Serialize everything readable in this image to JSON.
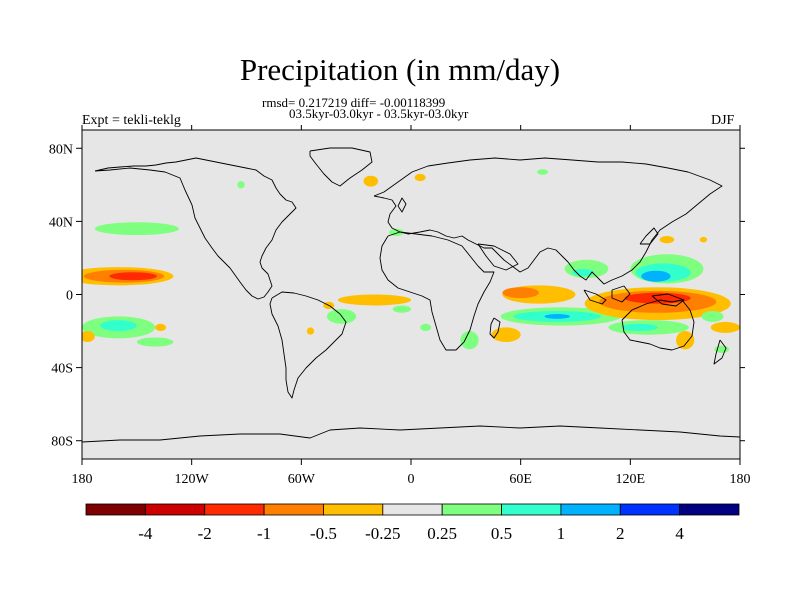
{
  "title": "Precipitation (in mm/day)",
  "stats_line": "rmsd= 0.217219 diff= -0.00118399",
  "period_line": "03.5kyr-03.0kyr - 03.5kyr-03.0kyr",
  "experiment_label": "Expt = tekli-teklg",
  "season_label": "DJF",
  "map": {
    "projection": "cylindrical-equidistant",
    "lon_range": [
      -180,
      180
    ],
    "lat_range": [
      -90,
      90
    ],
    "land_fill": "#e6e6e6",
    "frame_color": "#000000"
  },
  "axes": {
    "x_ticks": [
      {
        "lon": -180,
        "label": "180"
      },
      {
        "lon": -120,
        "label": "120W"
      },
      {
        "lon": -60,
        "label": "60W"
      },
      {
        "lon": 0,
        "label": "0"
      },
      {
        "lon": 60,
        "label": "60E"
      },
      {
        "lon": 120,
        "label": "120E"
      },
      {
        "lon": 180,
        "label": "180"
      }
    ],
    "y_ticks": [
      {
        "lat": 80,
        "label": "80N"
      },
      {
        "lat": 40,
        "label": "40N"
      },
      {
        "lat": 0,
        "label": "0"
      },
      {
        "lat": -40,
        "label": "40S"
      },
      {
        "lat": -80,
        "label": "80S"
      }
    ]
  },
  "colorbar": {
    "colors": [
      "#7f0000",
      "#cc0000",
      "#ff2a00",
      "#ff7f00",
      "#ffbf00",
      "#e6e6e6",
      "#7fff7f",
      "#33ffcc",
      "#00b2ff",
      "#0033ff",
      "#000080"
    ],
    "labels": [
      "-4",
      "-2",
      "-1",
      "-0.5",
      "-0.25",
      "0.25",
      "0.5",
      "1",
      "2",
      "4"
    ]
  },
  "anomalies": [
    {
      "name": "n-pacific-dry-outer",
      "color": "#ffbf00",
      "lon": -160,
      "lat": 10,
      "rx": 30,
      "ry": 5
    },
    {
      "name": "n-pacific-dry-mid",
      "color": "#ff7f00",
      "lon": -157,
      "lat": 10,
      "rx": 22,
      "ry": 3.5
    },
    {
      "name": "n-pacific-dry-core",
      "color": "#ff2a00",
      "lon": -152,
      "lat": 10,
      "rx": 13,
      "ry": 2.2
    },
    {
      "name": "n-pacific-wet",
      "color": "#7fff7f",
      "lon": -150,
      "lat": 36,
      "rx": 23,
      "ry": 3.5
    },
    {
      "name": "s-pacific-wet-outer",
      "color": "#7fff7f",
      "lon": -160,
      "lat": -18,
      "rx": 20,
      "ry": 6
    },
    {
      "name": "s-pacific-wet-core",
      "color": "#33ffcc",
      "lon": -160,
      "lat": -17,
      "rx": 10,
      "ry": 3
    },
    {
      "name": "s-pacific-wet-tail",
      "color": "#7fff7f",
      "lon": -140,
      "lat": -26,
      "rx": 10,
      "ry": 2.5
    },
    {
      "name": "s-pacific-dry-west",
      "color": "#ffbf00",
      "lon": -177,
      "lat": -23,
      "rx": 4,
      "ry": 3
    },
    {
      "name": "s-pacific-dry-east",
      "color": "#ffbf00",
      "lon": -137,
      "lat": -18,
      "rx": 3,
      "ry": 2
    },
    {
      "name": "canada-wet",
      "color": "#7fff7f",
      "lon": -93,
      "lat": 60,
      "rx": 2,
      "ry": 2
    },
    {
      "name": "n-atlantic-wet",
      "color": "#7fff7f",
      "lon": -8,
      "lat": 34,
      "rx": 4,
      "ry": 2
    },
    {
      "name": "greenland-dry",
      "color": "#ffbf00",
      "lon": -22,
      "lat": 62,
      "rx": 4,
      "ry": 3
    },
    {
      "name": "nordic-dry",
      "color": "#ffbf00",
      "lon": 5,
      "lat": 64,
      "rx": 3,
      "ry": 2
    },
    {
      "name": "russia-wet",
      "color": "#7fff7f",
      "lon": 72,
      "lat": 67,
      "rx": 3,
      "ry": 1.5
    },
    {
      "name": "amazon-dry-band",
      "color": "#ffbf00",
      "lon": -20,
      "lat": -3,
      "rx": 20,
      "ry": 3
    },
    {
      "name": "brazil-wet",
      "color": "#7fff7f",
      "lon": -38,
      "lat": -12,
      "rx": 8,
      "ry": 4
    },
    {
      "name": "brazil-dry",
      "color": "#ffbf00",
      "lon": -45,
      "lat": -6,
      "rx": 3,
      "ry": 2
    },
    {
      "name": "s-atlantic-dry",
      "color": "#ffbf00",
      "lon": -55,
      "lat": -20,
      "rx": 2,
      "ry": 2
    },
    {
      "name": "guinea-wet",
      "color": "#7fff7f",
      "lon": -5,
      "lat": -8,
      "rx": 5,
      "ry": 2
    },
    {
      "name": "s-atlantic-wet",
      "color": "#7fff7f",
      "lon": 8,
      "lat": -18,
      "rx": 3,
      "ry": 2
    },
    {
      "name": "s-africa-wet",
      "color": "#7fff7f",
      "lon": 32,
      "lat": -25,
      "rx": 5,
      "ry": 5
    },
    {
      "name": "madagascar-dry",
      "color": "#ffbf00",
      "lon": 52,
      "lat": -22,
      "rx": 8,
      "ry": 4
    },
    {
      "name": "w-indian-dry-outer",
      "color": "#ffbf00",
      "lon": 70,
      "lat": 0,
      "rx": 20,
      "ry": 5
    },
    {
      "name": "w-indian-dry-core",
      "color": "#ff7f00",
      "lon": 60,
      "lat": 1,
      "rx": 10,
      "ry": 3
    },
    {
      "name": "indian-wet-outer",
      "color": "#7fff7f",
      "lon": 82,
      "lat": -12,
      "rx": 33,
      "ry": 5
    },
    {
      "name": "indian-wet-mid",
      "color": "#33ffcc",
      "lon": 80,
      "lat": -12,
      "rx": 24,
      "ry": 3
    },
    {
      "name": "indian-wet-core",
      "color": "#00b2ff",
      "lon": 80,
      "lat": -12,
      "rx": 7,
      "ry": 1.3
    },
    {
      "name": "bay-wet-outer",
      "color": "#7fff7f",
      "lon": 96,
      "lat": 14,
      "rx": 12,
      "ry": 5
    },
    {
      "name": "bay-wet-core",
      "color": "#33ffcc",
      "lon": 94,
      "lat": 12,
      "rx": 6,
      "ry": 2
    },
    {
      "name": "w-pacific-wet-outer",
      "color": "#7fff7f",
      "lon": 140,
      "lat": 14,
      "rx": 20,
      "ry": 8
    },
    {
      "name": "w-pacific-wet-mid",
      "color": "#33ffcc",
      "lon": 138,
      "lat": 12,
      "rx": 15,
      "ry": 5
    },
    {
      "name": "w-pacific-wet-core",
      "color": "#00b2ff",
      "lon": 134,
      "lat": 10,
      "rx": 8,
      "ry": 3
    },
    {
      "name": "japan-dry",
      "color": "#ffbf00",
      "lon": 140,
      "lat": 30,
      "rx": 4,
      "ry": 2
    },
    {
      "name": "n-pacific-dry-e",
      "color": "#ffbf00",
      "lon": 160,
      "lat": 30,
      "rx": 2,
      "ry": 1.5
    },
    {
      "name": "maritime-dry-outer",
      "color": "#ffbf00",
      "lon": 135,
      "lat": -5,
      "rx": 40,
      "ry": 9
    },
    {
      "name": "maritime-dry-mid",
      "color": "#ff7f00",
      "lon": 135,
      "lat": -4,
      "rx": 32,
      "ry": 6
    },
    {
      "name": "maritime-dry-core",
      "color": "#ff2a00",
      "lon": 135,
      "lat": -2,
      "rx": 18,
      "ry": 3
    },
    {
      "name": "sw-pacific-wet-outer",
      "color": "#7fff7f",
      "lon": 130,
      "lat": -18,
      "rx": 22,
      "ry": 4
    },
    {
      "name": "sw-pacific-wet-core",
      "color": "#33ffcc",
      "lon": 125,
      "lat": -18,
      "rx": 10,
      "ry": 2
    },
    {
      "name": "aus-dry",
      "color": "#ffbf00",
      "lon": 150,
      "lat": -25,
      "rx": 5,
      "ry": 5
    },
    {
      "name": "ne-aus-wet",
      "color": "#7fff7f",
      "lon": 165,
      "lat": -12,
      "rx": 6,
      "ry": 3
    },
    {
      "name": "dateline-dry",
      "color": "#ffbf00",
      "lon": 172,
      "lat": -18,
      "rx": 8,
      "ry": 3
    },
    {
      "name": "s-ocean-wet",
      "color": "#7fff7f",
      "lon": 170,
      "lat": -30,
      "rx": 4,
      "ry": 2
    }
  ]
}
